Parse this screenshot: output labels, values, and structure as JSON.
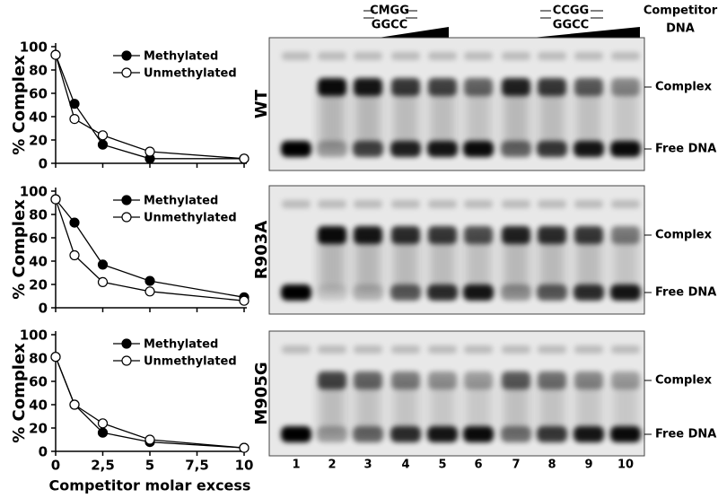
{
  "chart_data": [
    {
      "type": "line",
      "y_label": "% Complex",
      "x": [
        0,
        1,
        2.5,
        5,
        10
      ],
      "series": [
        {
          "name": "Methylated",
          "color": "#000000",
          "values": [
            93,
            51,
            16,
            4,
            4
          ]
        },
        {
          "name": "Unmethylated",
          "color": "#ffffff",
          "values": [
            93,
            38,
            24,
            10,
            4
          ]
        }
      ],
      "xlim": [
        0,
        10
      ],
      "xticks": [
        0,
        {
          "value": 2.5,
          "label": "2,5"
        },
        5,
        {
          "value": 7.5,
          "label": "7,5"
        },
        10
      ],
      "ylim": [
        0,
        100
      ],
      "yticks": [
        0,
        20,
        40,
        60,
        80,
        100
      ]
    },
    {
      "type": "line",
      "y_label": "% Complex",
      "x": [
        0,
        1,
        2.5,
        5,
        10
      ],
      "series": [
        {
          "name": "Methylated",
          "color": "#000000",
          "values": [
            93,
            73,
            37,
            23,
            9
          ]
        },
        {
          "name": "Unmethylated",
          "color": "#ffffff",
          "values": [
            93,
            45,
            22,
            14,
            6
          ]
        }
      ],
      "xlim": [
        0,
        10
      ],
      "xticks": [
        0,
        {
          "value": 2.5,
          "label": "2,5"
        },
        5,
        {
          "value": 7.5,
          "label": "7,5"
        },
        10
      ],
      "ylim": [
        0,
        100
      ],
      "yticks": [
        0,
        20,
        40,
        60,
        80,
        100
      ]
    },
    {
      "type": "line",
      "y_label": "% Complex",
      "x_label": "Competitor molar excess",
      "x": [
        0,
        1,
        2.5,
        5,
        10
      ],
      "series": [
        {
          "name": "Methylated",
          "color": "#000000",
          "values": [
            81,
            40,
            16,
            8,
            3
          ]
        },
        {
          "name": "Unmethylated",
          "color": "#ffffff",
          "values": [
            81,
            40,
            24,
            10,
            3
          ]
        }
      ],
      "xlim": [
        0,
        10
      ],
      "xticks": [
        0,
        {
          "value": 2.5,
          "label": "2,5"
        },
        5,
        {
          "value": 7.5,
          "label": "7,5"
        },
        10
      ],
      "ylim": [
        0,
        100
      ],
      "yticks": [
        0,
        20,
        40,
        60,
        80,
        100
      ]
    }
  ],
  "gel": {
    "competitor_label": [
      "Competitor",
      "DNA"
    ],
    "competitor_1": [
      "CMGG",
      "GGCC"
    ],
    "competitor_2": [
      "CCGG",
      "GGCC"
    ],
    "panels": [
      {
        "name": "WT",
        "complex": "Complex",
        "free": "Free DNA"
      },
      {
        "name": "R903A",
        "complex": "Complex",
        "free": "Free DNA"
      },
      {
        "name": "M905G",
        "complex": "Complex",
        "free": "Free DNA"
      }
    ],
    "lanes": [
      "1",
      "2",
      "3",
      "4",
      "5",
      "6",
      "7",
      "8",
      "9",
      "10"
    ]
  }
}
